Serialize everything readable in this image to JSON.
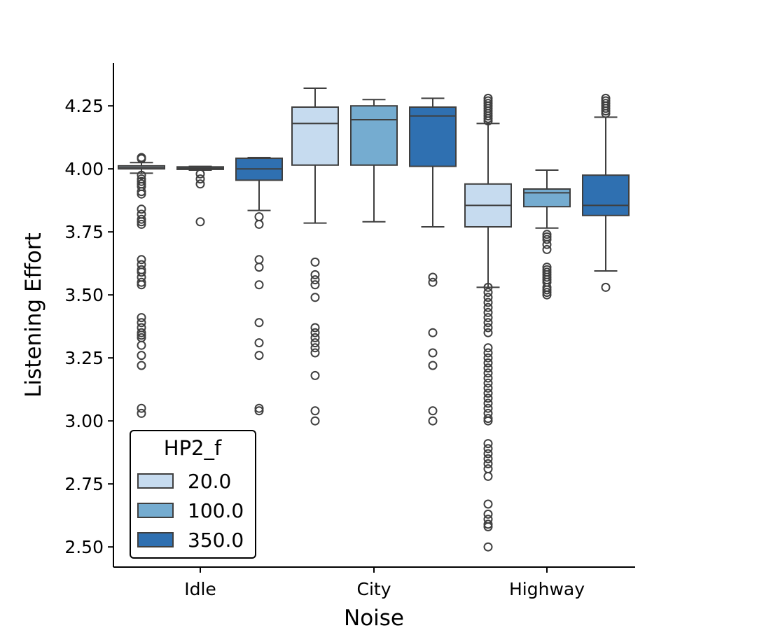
{
  "chart_data": {
    "type": "boxplot",
    "xlabel": "Noise",
    "ylabel": "Listening Effort",
    "ylim": [
      2.42,
      4.42
    ],
    "yticks": [
      "2.50",
      "2.75",
      "3.00",
      "3.25",
      "3.50",
      "3.75",
      "4.00",
      "4.25"
    ],
    "categories": [
      "Idle",
      "City",
      "Highway"
    ],
    "legend": {
      "title": "HP2_f",
      "position": "lower-left"
    },
    "series": [
      {
        "name": "20.0",
        "color": "#c6dbef",
        "boxes": [
          {
            "category": "Idle",
            "q1": 4.0,
            "median": 4.005,
            "q3": 4.012,
            "whisker_low": 3.983,
            "whisker_high": 4.025,
            "outliers": [
              4.045,
              4.04,
              3.975,
              3.96,
              3.95,
              3.94,
              3.93,
              3.91,
              3.9,
              3.84,
              3.82,
              3.8,
              3.79,
              3.78,
              3.64,
              3.62,
              3.6,
              3.59,
              3.57,
              3.55,
              3.54,
              3.41,
              3.39,
              3.37,
              3.35,
              3.34,
              3.33,
              3.3,
              3.26,
              3.22,
              3.05,
              3.03
            ]
          },
          {
            "category": "City",
            "q1": 4.015,
            "median": 4.18,
            "q3": 4.245,
            "whisker_low": 3.785,
            "whisker_high": 4.32,
            "outliers": [
              3.63,
              3.58,
              3.56,
              3.54,
              3.49,
              3.37,
              3.35,
              3.33,
              3.31,
              3.29,
              3.27,
              3.18,
              3.04,
              3.0
            ]
          },
          {
            "category": "Highway",
            "q1": 3.77,
            "median": 3.855,
            "q3": 3.94,
            "whisker_low": 3.53,
            "whisker_high": 4.18,
            "outliers": [
              4.28,
              4.27,
              4.26,
              4.25,
              4.24,
              4.23,
              4.22,
              4.21,
              4.2,
              4.19,
              3.53,
              3.51,
              3.49,
              3.47,
              3.45,
              3.43,
              3.41,
              3.39,
              3.37,
              3.35,
              3.29,
              3.27,
              3.25,
              3.23,
              3.21,
              3.19,
              3.17,
              3.15,
              3.13,
              3.11,
              3.09,
              3.07,
              3.05,
              3.03,
              3.01,
              3.0,
              2.91,
              2.89,
              2.87,
              2.85,
              2.83,
              2.81,
              2.78,
              2.67,
              2.63,
              2.61,
              2.59,
              2.58,
              2.5
            ]
          }
        ]
      },
      {
        "name": "100.0",
        "color": "#75acd0",
        "boxes": [
          {
            "category": "Idle",
            "q1": 3.998,
            "median": 4.003,
            "q3": 4.008,
            "whisker_low": 3.995,
            "whisker_high": 4.01,
            "outliers": [
              3.98,
              3.96,
              3.94,
              3.79
            ]
          },
          {
            "category": "City",
            "q1": 4.015,
            "median": 4.195,
            "q3": 4.25,
            "whisker_low": 3.79,
            "whisker_high": 4.275,
            "outliers": []
          },
          {
            "category": "Highway",
            "q1": 3.85,
            "median": 3.905,
            "q3": 3.92,
            "whisker_low": 3.765,
            "whisker_high": 3.995,
            "outliers": [
              3.74,
              3.73,
              3.72,
              3.7,
              3.68,
              3.61,
              3.6,
              3.59,
              3.58,
              3.57,
              3.56,
              3.55,
              3.53,
              3.52,
              3.51,
              3.5
            ]
          }
        ]
      },
      {
        "name": "350.0",
        "color": "#2f70b1",
        "boxes": [
          {
            "category": "Idle",
            "q1": 3.955,
            "median": 4.0,
            "q3": 4.042,
            "whisker_low": 3.835,
            "whisker_high": 4.045,
            "outliers": [
              3.81,
              3.78,
              3.64,
              3.61,
              3.54,
              3.39,
              3.31,
              3.26,
              3.05,
              3.04
            ]
          },
          {
            "category": "City",
            "q1": 4.01,
            "median": 4.21,
            "q3": 4.245,
            "whisker_low": 3.77,
            "whisker_high": 4.28,
            "outliers": [
              3.57,
              3.55,
              3.35,
              3.27,
              3.22,
              3.04,
              3.0
            ]
          },
          {
            "category": "Highway",
            "q1": 3.815,
            "median": 3.855,
            "q3": 3.975,
            "whisker_low": 3.595,
            "whisker_high": 4.205,
            "outliers": [
              4.28,
              4.27,
              4.26,
              4.25,
              4.24,
              4.23,
              4.22,
              3.53
            ]
          }
        ]
      }
    ]
  }
}
